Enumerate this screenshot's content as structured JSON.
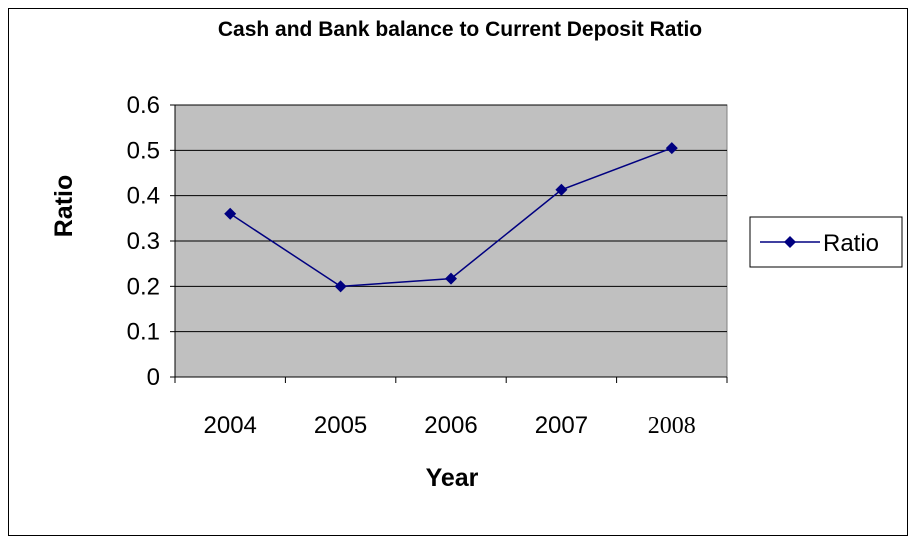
{
  "chart_data": {
    "type": "line",
    "title": "Cash and Bank balance to Current Deposit Ratio",
    "xlabel": "Year",
    "ylabel": "Ratio",
    "categories": [
      "2004",
      "2005",
      "2006",
      "2007",
      "2008"
    ],
    "series": [
      {
        "name": "Ratio",
        "values": [
          0.36,
          0.2,
          0.217,
          0.413,
          0.505
        ]
      }
    ],
    "ylim": [
      0,
      0.6
    ],
    "yticks": [
      "0",
      "0.1",
      "0.2",
      "0.3",
      "0.4",
      "0.5",
      "0.6"
    ],
    "grid": true,
    "legend": "right",
    "colors": {
      "series": "#000080",
      "plot_background": "#c0c0c0",
      "gridline": "#000000",
      "chart_background": "#ffffff"
    }
  }
}
